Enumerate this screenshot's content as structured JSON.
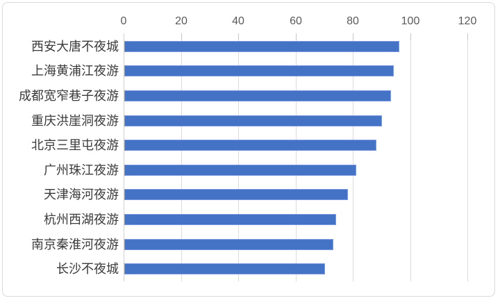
{
  "chart_data": {
    "type": "bar",
    "orientation": "horizontal",
    "title": "",
    "categories": [
      "西安大唐不夜城",
      "上海黄浦江夜游",
      "成都宽窄巷子夜游",
      "重庆洪崖洞夜游",
      "北京三里屯夜游",
      "广州珠江夜游",
      "天津海河夜游",
      "杭州西湖夜游",
      "南京秦淮河夜游",
      "长沙不夜城"
    ],
    "values": [
      96,
      94,
      93,
      90,
      88,
      81,
      78,
      74,
      73,
      70
    ],
    "x_ticks": [
      "0",
      "20",
      "40",
      "60",
      "80",
      "100",
      "120"
    ],
    "xlim": [
      0,
      120
    ],
    "grid": "vertical",
    "legend": "none",
    "axis_position": "top",
    "colors": {
      "bar_fill": "#4472C4",
      "bar_border": "#7E99DE",
      "gridline": "#DCDCDC",
      "axis_line": "#D0D0D0",
      "tick_mark": "#C6C6C6",
      "tick_label": "#595959",
      "category_label": "#3A3A3A",
      "frame_border": "#D9D9D9",
      "background": "#FFFFFF"
    }
  }
}
